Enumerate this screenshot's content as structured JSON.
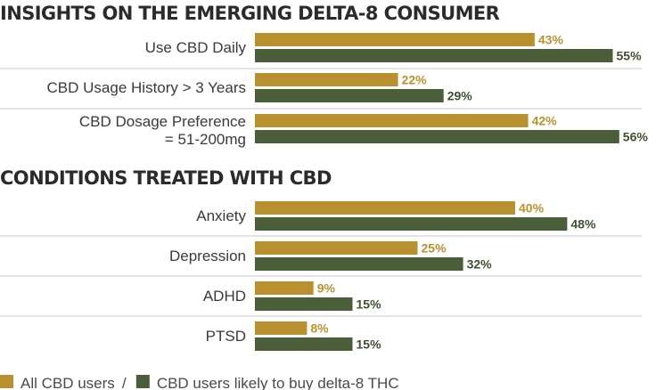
{
  "chart_data": [
    {
      "type": "bar",
      "title": "INSIGHTS ON THE EMERGING DELTA-8 CONSUMER",
      "categories": [
        [
          "Use CBD Daily"
        ],
        [
          "CBD Usage History > 3 Years"
        ],
        [
          "CBD Dosage Preference",
          "= 51-200mg"
        ]
      ],
      "series": [
        {
          "name": "All CBD users",
          "color": "#b8912e",
          "values": [
            43,
            22,
            42
          ]
        },
        {
          "name": "CBD users likely to buy delta-8 THC",
          "color": "#4a5e3a",
          "values": [
            55,
            29,
            56
          ]
        }
      ],
      "value_suffix": "%"
    },
    {
      "type": "bar",
      "title": "CONDITIONS TREATED WITH CBD",
      "categories": [
        [
          "Anxiety"
        ],
        [
          "Depression"
        ],
        [
          "ADHD"
        ],
        [
          "PTSD"
        ]
      ],
      "series": [
        {
          "name": "All CBD users",
          "color": "#b8912e",
          "values": [
            40,
            25,
            9,
            8
          ]
        },
        {
          "name": "CBD users likely to buy delta-8 THC",
          "color": "#4a5e3a",
          "values": [
            48,
            32,
            15,
            15
          ]
        }
      ],
      "value_suffix": "%"
    }
  ],
  "legend": {
    "items": [
      {
        "label": "All CBD users",
        "color": "#b8912e"
      },
      {
        "label": "CBD users likely to buy delta-8 THC",
        "color": "#4a5e3a"
      }
    ],
    "separator": "/"
  },
  "colors": {
    "gold_label": "#b8912e",
    "green_label": "#3f4f31"
  }
}
